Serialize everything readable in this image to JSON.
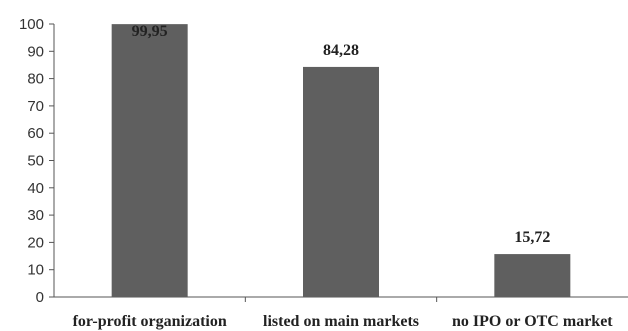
{
  "chart_data": {
    "type": "bar",
    "categories": [
      "for-profit organization",
      "listed on main markets",
      "no IPO or OTC market"
    ],
    "values": [
      99.95,
      84.28,
      15.72
    ],
    "data_labels": [
      "99,95",
      "84,28",
      "15,72"
    ],
    "yticks": [
      "0",
      "10",
      "20",
      "30",
      "40",
      "50",
      "60",
      "70",
      "80",
      "90",
      "100"
    ],
    "ylim": [
      0,
      100
    ],
    "grid": false,
    "bar_color": "#5f5f5f"
  }
}
